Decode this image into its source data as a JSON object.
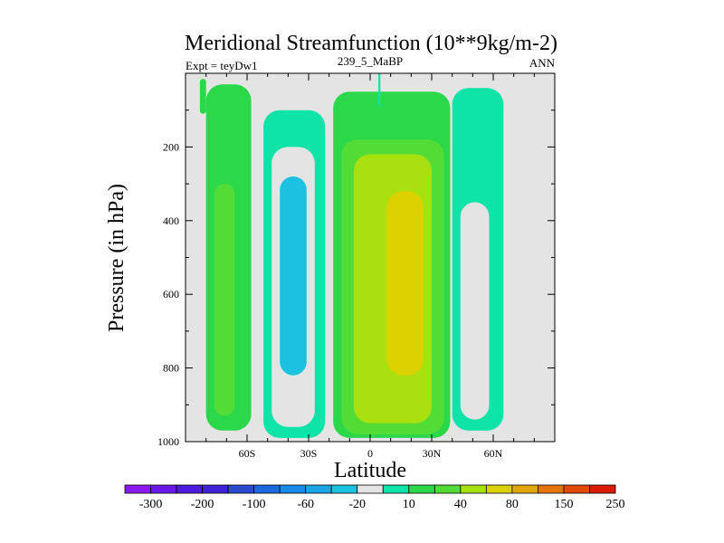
{
  "chart_data": {
    "type": "contour",
    "title": "Meridional Streamfunction (10**9kg/m-2)",
    "left_string": "Expt = teyDw1",
    "center_string": "239_5_MaBP",
    "right_string": "ANN",
    "xlabel": "Latitude",
    "ylabel": "Pressure (in hPa)",
    "xlim": [
      -90,
      90
    ],
    "ylim": [
      1000,
      0
    ],
    "xticks": [
      -60,
      -30,
      0,
      30,
      60
    ],
    "xtick_labels": [
      "60S",
      "30S",
      "0",
      "30N",
      "60N"
    ],
    "yticks": [
      200,
      400,
      600,
      800,
      1000
    ],
    "ytick_labels": [
      "200",
      "400",
      "600",
      "800",
      "1000"
    ],
    "colorbar": {
      "levels": [
        -300,
        -250,
        -200,
        -150,
        -100,
        -80,
        -60,
        -40,
        -20,
        -10,
        10,
        20,
        40,
        60,
        80,
        100,
        150,
        200,
        250
      ],
      "labels": [
        "-300",
        "-200",
        "-100",
        "-60",
        "-20",
        "10",
        "40",
        "80",
        "150",
        "250"
      ],
      "colors": [
        "#8a1aee",
        "#6a1ae6",
        "#4d1ade",
        "#3c24d6",
        "#2a4ccc",
        "#1a6ade",
        "#1a8ae8",
        "#1aa6e6",
        "#1ac2e0",
        "#e4e4e4",
        "#0ee3a8",
        "#2ad84a",
        "#54dc36",
        "#a8e010",
        "#dcd200",
        "#e2a600",
        "#e47600",
        "#e04a00",
        "#dc1a00"
      ]
    },
    "cells": [
      {
        "name": "shallow-cell-60s",
        "lat": [
          -83,
          -80
        ],
        "p": [
          15,
          110
        ],
        "level": 10
      },
      {
        "name": "sh-polar-cell",
        "lat": [
          -80,
          -58
        ],
        "p": [
          30,
          970
        ],
        "level": 10,
        "core": {
          "lat": [
            -76,
            -66
          ],
          "p": [
            300,
            930
          ],
          "level": 20
        }
      },
      {
        "name": "sh-ferrel-cell",
        "lat": [
          -52,
          -22
        ],
        "p": [
          100,
          990
        ],
        "level": -10,
        "inner": {
          "lat": [
            -48,
            -27
          ],
          "p": [
            200,
            960
          ],
          "level": -20
        },
        "core": {
          "lat": [
            -44,
            -31
          ],
          "p": [
            280,
            820
          ],
          "level": -40
        }
      },
      {
        "name": "hadley-cell",
        "lat": [
          -18,
          39
        ],
        "p": [
          50,
          990
        ],
        "level": 10,
        "inner": {
          "lat": [
            -14,
            36
          ],
          "p": [
            180,
            980
          ],
          "level": 20
        },
        "sub": {
          "lat": [
            -8,
            30
          ],
          "p": [
            220,
            950
          ],
          "level": 40
        },
        "core": {
          "lat": [
            8,
            26
          ],
          "p": [
            320,
            820
          ],
          "level": 60
        }
      },
      {
        "name": "nh-ferrel-cell",
        "lat": [
          40,
          65
        ],
        "p": [
          40,
          970
        ],
        "level": -10,
        "inner": {
          "lat": [
            44,
            58
          ],
          "p": [
            350,
            940
          ],
          "level": -20
        }
      },
      {
        "name": "shallow-cell-eq",
        "lat": [
          4,
          5
        ],
        "p": [
          0,
          90
        ],
        "level": -10
      }
    ]
  }
}
